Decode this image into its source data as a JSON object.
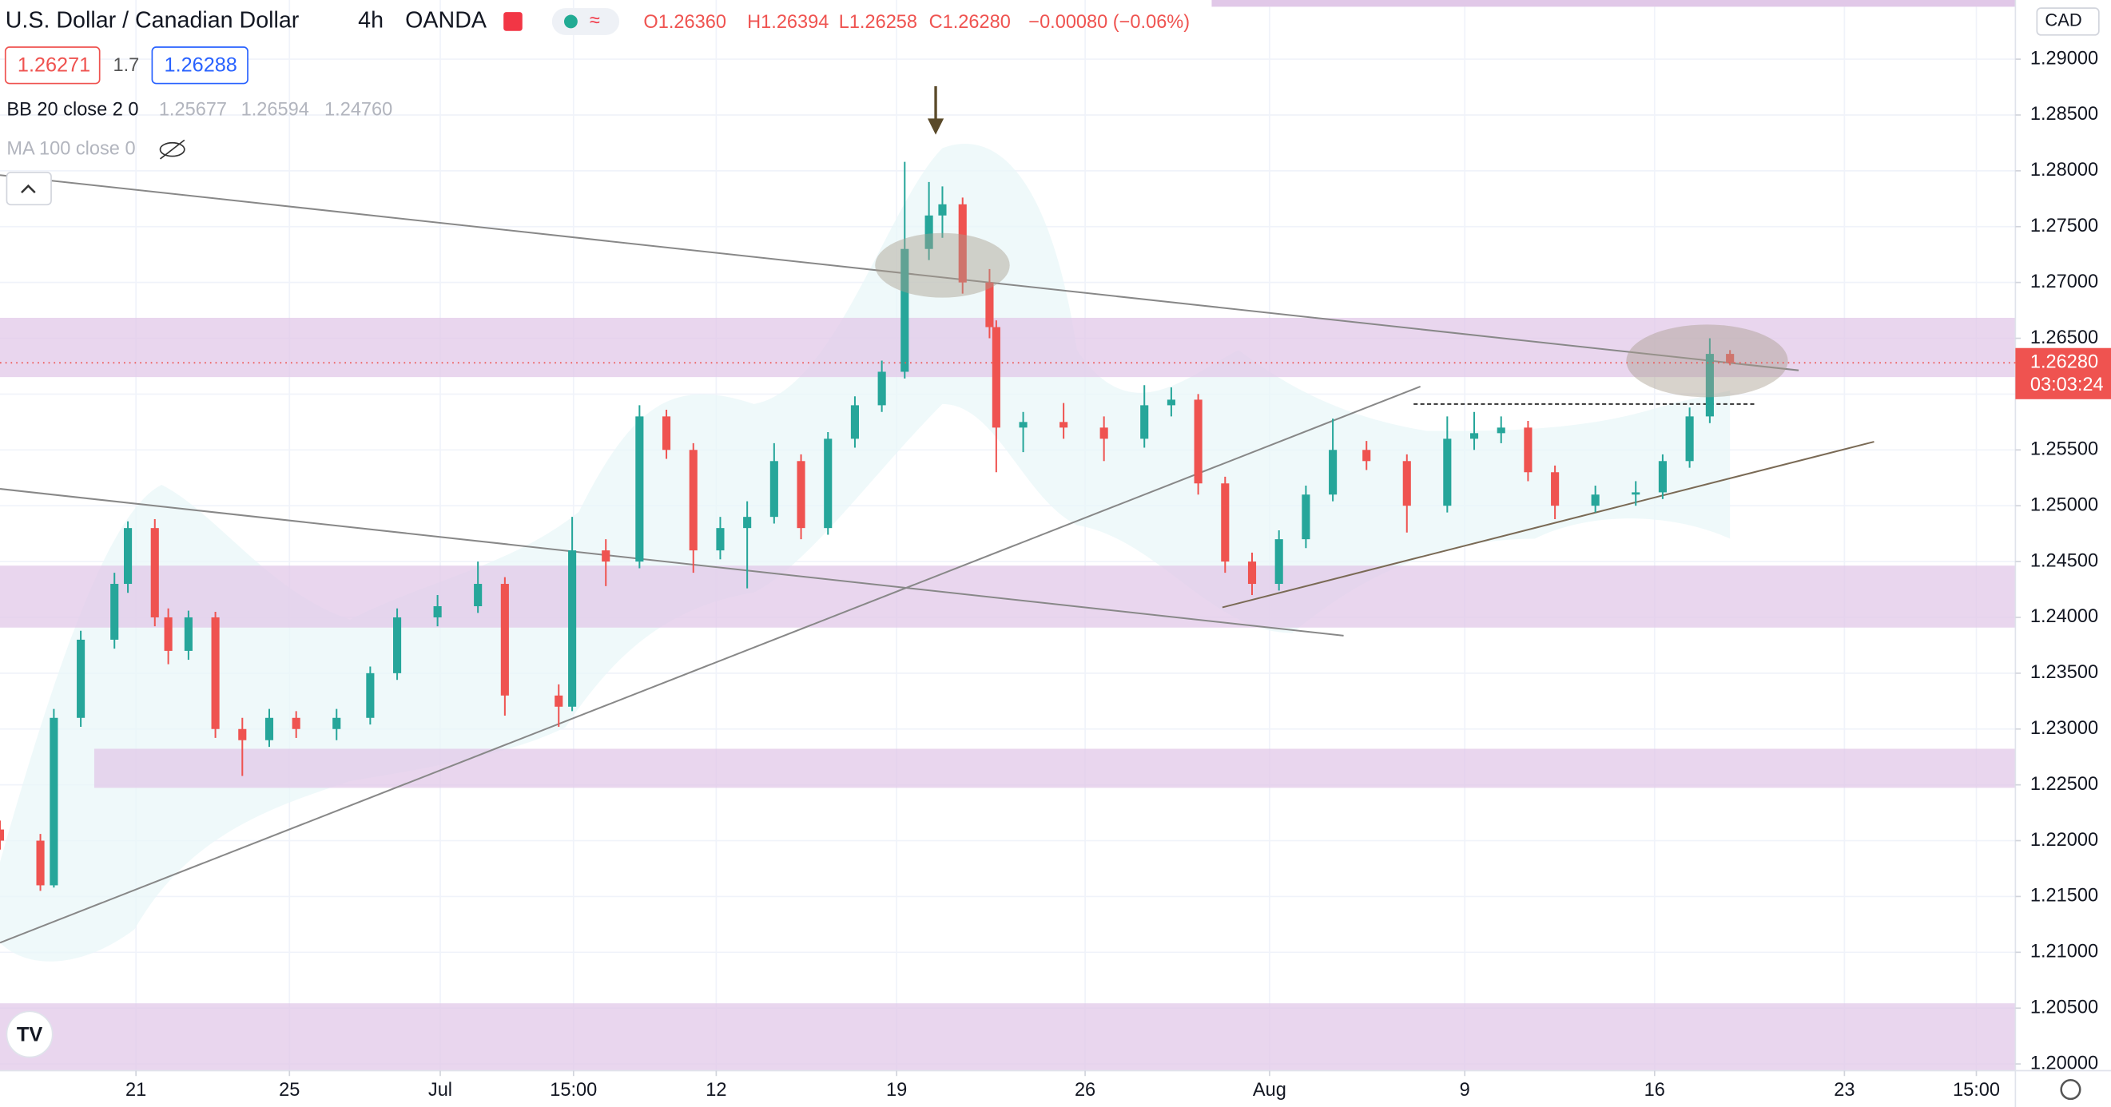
{
  "header": {
    "symbol": "U.S. Dollar / Canadian Dollar",
    "interval": "4h",
    "source": "OANDA",
    "open": "O1.26360",
    "high": "H1.26394",
    "low": "L1.26258",
    "close": "C1.26280",
    "change": "−0.00080 (−0.06%)",
    "bid": "1.26271",
    "spread": "1.7",
    "ask": "1.26288",
    "bb_name": "BB 20 close 2 0",
    "bb_values": [
      "1.25677",
      "1.26594",
      "1.24760"
    ],
    "ma_name": "MA 100 close 0",
    "currency": "CAD"
  },
  "chart_data": {
    "type": "candlestick",
    "x": [
      0,
      9,
      12,
      18,
      25.5,
      28.5,
      34.5,
      37.5,
      42,
      48,
      54,
      60,
      66,
      75,
      82.5,
      88.5,
      97.5,
      106.5,
      112.5,
      124.5,
      127.5,
      135,
      142.5,
      148.5,
      154.5,
      160.5,
      166.5,
      172.5,
      178.5,
      184.5,
      190.5,
      196.5,
      201.6,
      207,
      210,
      214.5,
      220.5,
      222,
      228,
      237,
      246,
      255,
      261,
      267,
      273,
      279,
      285,
      291,
      297,
      304.5,
      313.5,
      322.5,
      328.5,
      334.5,
      340.5,
      346.5,
      355.5,
      364.5,
      370.5,
      376.5,
      381,
      385.5
    ],
    "open": [
      1.221,
      1.22,
      1.216,
      1.231,
      1.238,
      1.243,
      1.248,
      1.24,
      1.237,
      1.24,
      1.23,
      1.229,
      1.231,
      1.23,
      1.231,
      1.235,
      1.24,
      1.241,
      1.243,
      1.233,
      1.232,
      1.246,
      1.245,
      1.258,
      1.255,
      1.246,
      1.248,
      1.249,
      1.254,
      1.248,
      1.256,
      1.259,
      1.262,
      1.273,
      1.276,
      1.277,
      1.27,
      1.266,
      1.257,
      1.2575,
      1.257,
      1.256,
      1.259,
      1.2595,
      1.252,
      1.245,
      1.243,
      1.247,
      1.251,
      1.255,
      1.254,
      1.25,
      1.256,
      1.2565,
      1.257,
      1.253,
      1.25,
      1.251,
      1.2512,
      1.254,
      1.258,
      1.2636
    ],
    "high": [
      1.2218,
      1.2206,
      1.2318,
      1.2388,
      1.244,
      1.2486,
      1.2488,
      1.2408,
      1.2406,
      1.2405,
      1.231,
      1.2318,
      1.2316,
      1.2318,
      1.2356,
      1.2408,
      1.242,
      1.245,
      1.2436,
      1.234,
      1.249,
      1.247,
      1.259,
      1.2586,
      1.2556,
      1.249,
      1.2504,
      1.2556,
      1.2546,
      1.2566,
      1.2598,
      1.263,
      1.2808,
      1.279,
      1.2786,
      1.2776,
      1.2712,
      1.2666,
      1.2584,
      1.2592,
      1.258,
      1.2608,
      1.2606,
      1.26,
      1.2526,
      1.2458,
      1.2478,
      1.2518,
      1.2578,
      1.2558,
      1.2546,
      1.258,
      1.2584,
      1.258,
      1.2576,
      1.2536,
      1.2518,
      1.2522,
      1.2546,
      1.2588,
      1.265,
      1.26394
    ],
    "low": [
      1.2192,
      1.2155,
      1.2158,
      1.2302,
      1.2372,
      1.2422,
      1.2392,
      1.2358,
      1.2362,
      1.2292,
      1.2258,
      1.2284,
      1.2292,
      1.229,
      1.2304,
      1.2344,
      1.2392,
      1.2404,
      1.2312,
      1.2302,
      1.2316,
      1.2428,
      1.2444,
      1.2542,
      1.244,
      1.2452,
      1.2426,
      1.2484,
      1.247,
      1.2474,
      1.2552,
      1.2584,
      1.2614,
      1.272,
      1.274,
      1.269,
      1.265,
      1.253,
      1.2548,
      1.256,
      1.254,
      1.2552,
      1.258,
      1.251,
      1.244,
      1.242,
      1.2424,
      1.2462,
      1.2504,
      1.2532,
      1.2476,
      1.2494,
      1.255,
      1.2556,
      1.2522,
      1.2488,
      1.2494,
      1.25,
      1.2506,
      1.2534,
      1.2574,
      1.26258
    ],
    "close": [
      1.22,
      1.216,
      1.231,
      1.238,
      1.243,
      1.248,
      1.24,
      1.237,
      1.24,
      1.23,
      1.229,
      1.231,
      1.23,
      1.231,
      1.235,
      1.24,
      1.241,
      1.243,
      1.233,
      1.232,
      1.246,
      1.245,
      1.258,
      1.255,
      1.246,
      1.248,
      1.249,
      1.254,
      1.248,
      1.256,
      1.259,
      1.262,
      1.273,
      1.276,
      1.277,
      1.27,
      1.266,
      1.257,
      1.2575,
      1.257,
      1.256,
      1.259,
      1.2595,
      1.252,
      1.245,
      1.243,
      1.247,
      1.251,
      1.255,
      1.254,
      1.25,
      1.256,
      1.2565,
      1.257,
      1.253,
      1.25,
      1.251,
      1.2512,
      1.254,
      1.258,
      1.2636,
      1.2628
    ],
    "up_color": "#26a69a",
    "down_color": "#ef5350",
    "xlim": [
      0,
      449.1
    ],
    "xticks": [
      {
        "value": 30.3,
        "label": "21"
      },
      {
        "value": 64.5,
        "label": "25"
      },
      {
        "value": 98.1,
        "label": "Jul"
      },
      {
        "value": 127.8,
        "label": "15:00"
      },
      {
        "value": 159.6,
        "label": "12"
      },
      {
        "value": 199.8,
        "label": "19"
      },
      {
        "value": 241.8,
        "label": "26"
      },
      {
        "value": 282.9,
        "label": "Aug"
      },
      {
        "value": 326.4,
        "label": "9"
      },
      {
        "value": 368.7,
        "label": "16"
      },
      {
        "value": 411,
        "label": "23"
      },
      {
        "value": 440.4,
        "label": "15:00"
      }
    ],
    "ylim": [
      1.1994,
      1.2953
    ],
    "yticks": [
      {
        "value": 1.2,
        "label": "1.20000"
      },
      {
        "value": 1.205,
        "label": "1.20500"
      },
      {
        "value": 1.21,
        "label": "1.21000"
      },
      {
        "value": 1.215,
        "label": "1.21500"
      },
      {
        "value": 1.22,
        "label": "1.22000"
      },
      {
        "value": 1.225,
        "label": "1.22500"
      },
      {
        "value": 1.23,
        "label": "1.23000"
      },
      {
        "value": 1.235,
        "label": "1.23500"
      },
      {
        "value": 1.24,
        "label": "1.24000"
      },
      {
        "value": 1.245,
        "label": "1.24500"
      },
      {
        "value": 1.25,
        "label": "1.25000"
      },
      {
        "value": 1.255,
        "label": "1.25500"
      },
      {
        "value": 1.26,
        "label": "1.26000"
      },
      {
        "value": 1.265,
        "label": "1.26500"
      },
      {
        "value": 1.27,
        "label": "1.27000"
      },
      {
        "value": 1.275,
        "label": "1.27500"
      },
      {
        "value": 1.28,
        "label": "1.28000"
      },
      {
        "value": 1.285,
        "label": "1.28500"
      },
      {
        "value": 1.29,
        "label": "1.29000"
      }
    ],
    "grid": true,
    "last_price_label": "1.26280",
    "countdown": "03:03:24"
  }
}
